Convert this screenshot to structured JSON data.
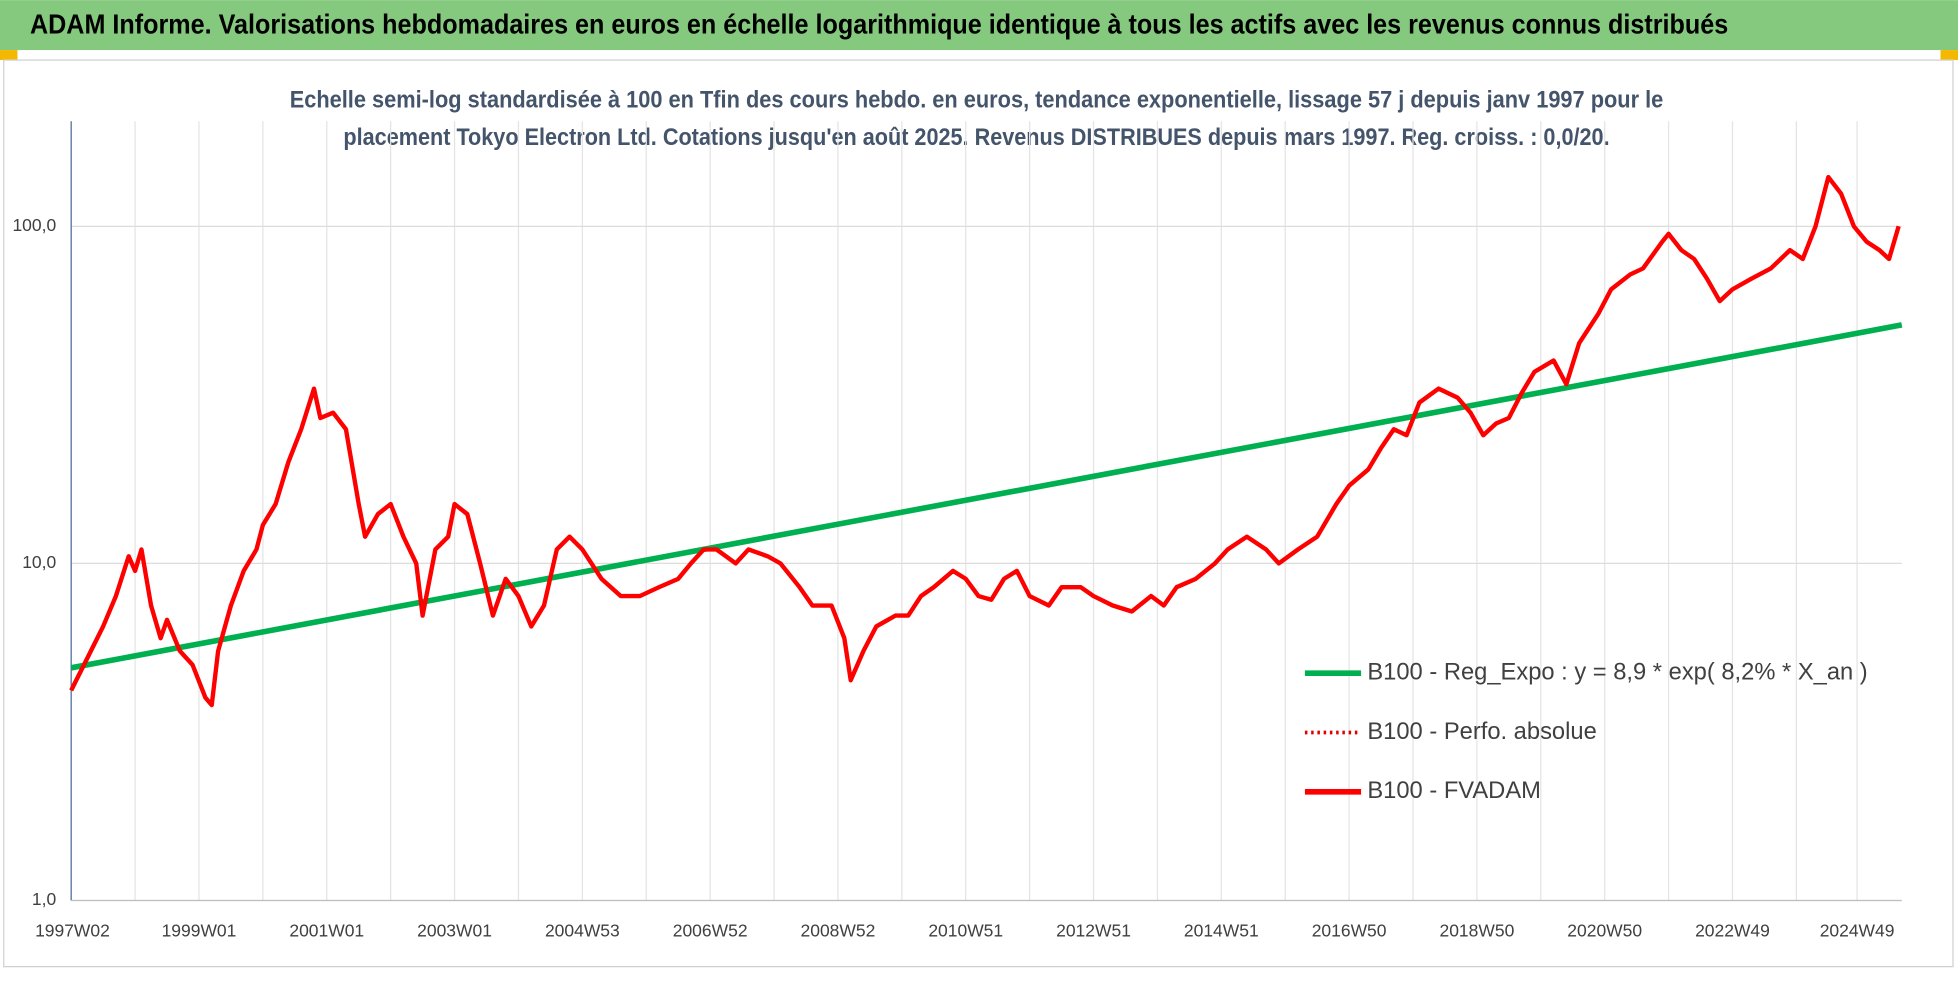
{
  "chart_data": {
    "type": "line",
    "title": "ADAM Informe. Valorisations hebdomadaires en euros en échelle logarithmique identique à tous les actifs avec les revenus connus distribués",
    "subtitle": [
      "Echelle semi-log standardisée à 100 en Tfin des cours hebdo. en euros, tendance exponentielle, lissage 57 j depuis janv 1997 pour le",
      "placement Tokyo Electron Ltd. Cotations jusqu'en août 2025. Revenus DISTRIBUES depuis mars 1997. Reg. croiss. : 0,0/20."
    ],
    "log_y": true,
    "grid": true,
    "legend": "lower right",
    "xlim": [
      1997.0,
      2025.65
    ],
    "xticks": [
      {
        "value": 1997.02,
        "label": "1997W02"
      },
      {
        "value": 1999.0,
        "label": "1999W01"
      },
      {
        "value": 2001.0,
        "label": "2001W01"
      },
      {
        "value": 2003.0,
        "label": "2003W01"
      },
      {
        "value": 2005.0,
        "label": "2004W53"
      },
      {
        "value": 2007.0,
        "label": "2006W52"
      },
      {
        "value": 2009.0,
        "label": "2008W52"
      },
      {
        "value": 2011.0,
        "label": "2010W51"
      },
      {
        "value": 2013.0,
        "label": "2012W51"
      },
      {
        "value": 2015.0,
        "label": "2014W51"
      },
      {
        "value": 2017.0,
        "label": "2016W50"
      },
      {
        "value": 2019.0,
        "label": "2018W50"
      },
      {
        "value": 2021.0,
        "label": "2020W50"
      },
      {
        "value": 2023.0,
        "label": "2022W49"
      },
      {
        "value": 2024.95,
        "label": "2024W49"
      }
    ],
    "xminorticks": [
      1998,
      2000,
      2002,
      2004,
      2006,
      2008,
      2010,
      2012,
      2014,
      2016,
      2018,
      2020,
      2022,
      2024
    ],
    "ylim": [
      1,
      205
    ],
    "yticks": [
      {
        "value": 1,
        "label": "1,0"
      },
      {
        "value": 10,
        "label": "10,0"
      },
      {
        "value": 100,
        "label": "100,0"
      }
    ],
    "series": [
      {
        "name": "B100 - Reg_Expo : y = 8,9 * exp( 8,2% *  X_an )",
        "color": "#00b050",
        "style": "solid",
        "x": [
          1997.0,
          2025.65
        ],
        "values": [
          4.9,
          51
        ]
      },
      {
        "name": "B100 - Perfo. absolue",
        "color": "#e00000",
        "style": "dotted",
        "x": [
          1997.0,
          1997.2,
          1997.5,
          1997.7,
          1997.9,
          1998.0,
          1998.1,
          1998.25,
          1998.4,
          1998.5,
          1998.7,
          1998.9,
          1999.1,
          1999.2,
          1999.3,
          1999.5,
          1999.7,
          1999.9,
          2000.0,
          2000.2,
          2000.4,
          2000.6,
          2000.8,
          2000.9,
          2001.1,
          2001.3,
          2001.5,
          2001.6,
          2001.8,
          2002.0,
          2002.2,
          2002.4,
          2002.5,
          2002.7,
          2002.9,
          2003.0,
          2003.2,
          2003.4,
          2003.6,
          2003.8,
          2004.0,
          2004.2,
          2004.4,
          2004.6,
          2004.8,
          2005.0,
          2005.3,
          2005.6,
          2005.9,
          2006.2,
          2006.5,
          2006.7,
          2006.9,
          2007.1,
          2007.4,
          2007.6,
          2007.9,
          2008.1,
          2008.4,
          2008.6,
          2008.9,
          2009.1,
          2009.2,
          2009.4,
          2009.6,
          2009.9,
          2010.1,
          2010.3,
          2010.5,
          2010.8,
          2011.0,
          2011.2,
          2011.4,
          2011.6,
          2011.8,
          2012.0,
          2012.3,
          2012.5,
          2012.8,
          2013.0,
          2013.3,
          2013.6,
          2013.9,
          2014.1,
          2014.3,
          2014.6,
          2014.9,
          2015.1,
          2015.4,
          2015.7,
          2015.9,
          2016.2,
          2016.5,
          2016.8,
          2017.0,
          2017.3,
          2017.5,
          2017.7,
          2017.9,
          2018.1,
          2018.4,
          2018.7,
          2018.9,
          2019.1,
          2019.3,
          2019.5,
          2019.7,
          2019.9,
          2020.2,
          2020.4,
          2020.6,
          2020.9,
          2021.1,
          2021.4,
          2021.6,
          2021.9,
          2022.0,
          2022.2,
          2022.4,
          2022.6,
          2022.8,
          2023.0,
          2023.3,
          2023.6,
          2023.9,
          2024.1,
          2024.3,
          2024.5,
          2024.7,
          2024.9,
          2025.1,
          2025.3,
          2025.45,
          2025.6
        ],
        "values": [
          4.2,
          5.0,
          6.5,
          8.0,
          10.5,
          9.5,
          11,
          7.5,
          6.0,
          6.8,
          5.5,
          5.0,
          4.0,
          3.8,
          5.5,
          7.5,
          9.5,
          11,
          13,
          15,
          20,
          25,
          33,
          27,
          28,
          25,
          15,
          12,
          14,
          15,
          12,
          10,
          7,
          11,
          12,
          15,
          14,
          10,
          7,
          9,
          8,
          6.5,
          7.5,
          11,
          12,
          11,
          9,
          8,
          8,
          8.5,
          9,
          10,
          11,
          11,
          10,
          11,
          10.5,
          10,
          8.5,
          7.5,
          7.5,
          6,
          4.5,
          5.5,
          6.5,
          7,
          7,
          8,
          8.5,
          9.5,
          9,
          8,
          7.8,
          9,
          9.5,
          8,
          7.5,
          8.5,
          8.5,
          8,
          7.5,
          7.2,
          8,
          7.5,
          8.5,
          9,
          10,
          11,
          12,
          11,
          10,
          11,
          12,
          15,
          17,
          19,
          22,
          25,
          24,
          30,
          33,
          31,
          28,
          24,
          26,
          27,
          32,
          37,
          40,
          34,
          45,
          55,
          65,
          72,
          75,
          90,
          95,
          85,
          80,
          70,
          60,
          65,
          70,
          75,
          85,
          80,
          100,
          140,
          125,
          100,
          90,
          85,
          80,
          100
        ]
      },
      {
        "name": "B100 - FVADAM",
        "color": "#ff0000",
        "style": "solid",
        "x": [
          1997.0,
          1997.2,
          1997.5,
          1997.7,
          1997.9,
          1998.0,
          1998.1,
          1998.25,
          1998.4,
          1998.5,
          1998.7,
          1998.9,
          1999.1,
          1999.2,
          1999.3,
          1999.5,
          1999.7,
          1999.9,
          2000.0,
          2000.2,
          2000.4,
          2000.6,
          2000.8,
          2000.9,
          2001.1,
          2001.3,
          2001.5,
          2001.6,
          2001.8,
          2002.0,
          2002.2,
          2002.4,
          2002.5,
          2002.7,
          2002.9,
          2003.0,
          2003.2,
          2003.4,
          2003.6,
          2003.8,
          2004.0,
          2004.2,
          2004.4,
          2004.6,
          2004.8,
          2005.0,
          2005.3,
          2005.6,
          2005.9,
          2006.2,
          2006.5,
          2006.7,
          2006.9,
          2007.1,
          2007.4,
          2007.6,
          2007.9,
          2008.1,
          2008.4,
          2008.6,
          2008.9,
          2009.1,
          2009.2,
          2009.4,
          2009.6,
          2009.9,
          2010.1,
          2010.3,
          2010.5,
          2010.8,
          2011.0,
          2011.2,
          2011.4,
          2011.6,
          2011.8,
          2012.0,
          2012.3,
          2012.5,
          2012.8,
          2013.0,
          2013.3,
          2013.6,
          2013.9,
          2014.1,
          2014.3,
          2014.6,
          2014.9,
          2015.1,
          2015.4,
          2015.7,
          2015.9,
          2016.2,
          2016.5,
          2016.8,
          2017.0,
          2017.3,
          2017.5,
          2017.7,
          2017.9,
          2018.1,
          2018.4,
          2018.7,
          2018.9,
          2019.1,
          2019.3,
          2019.5,
          2019.7,
          2019.9,
          2020.2,
          2020.4,
          2020.6,
          2020.9,
          2021.1,
          2021.4,
          2021.6,
          2021.9,
          2022.0,
          2022.2,
          2022.4,
          2022.6,
          2022.8,
          2023.0,
          2023.3,
          2023.6,
          2023.9,
          2024.1,
          2024.3,
          2024.5,
          2024.7,
          2024.9,
          2025.1,
          2025.3,
          2025.45,
          2025.6
        ],
        "values": [
          4.2,
          5.0,
          6.5,
          8.0,
          10.5,
          9.5,
          11,
          7.5,
          6.0,
          6.8,
          5.5,
          5.0,
          4.0,
          3.8,
          5.5,
          7.5,
          9.5,
          11,
          13,
          15,
          20,
          25,
          33,
          27,
          28,
          25,
          15,
          12,
          14,
          15,
          12,
          10,
          7,
          11,
          12,
          15,
          14,
          10,
          7,
          9,
          8,
          6.5,
          7.5,
          11,
          12,
          11,
          9,
          8,
          8,
          8.5,
          9,
          10,
          11,
          11,
          10,
          11,
          10.5,
          10,
          8.5,
          7.5,
          7.5,
          6,
          4.5,
          5.5,
          6.5,
          7,
          7,
          8,
          8.5,
          9.5,
          9,
          8,
          7.8,
          9,
          9.5,
          8,
          7.5,
          8.5,
          8.5,
          8,
          7.5,
          7.2,
          8,
          7.5,
          8.5,
          9,
          10,
          11,
          12,
          11,
          10,
          11,
          12,
          15,
          17,
          19,
          22,
          25,
          24,
          30,
          33,
          31,
          28,
          24,
          26,
          27,
          32,
          37,
          40,
          34,
          45,
          55,
          65,
          72,
          75,
          90,
          95,
          85,
          80,
          70,
          60,
          65,
          70,
          75,
          85,
          80,
          100,
          140,
          125,
          100,
          90,
          85,
          80,
          100
        ]
      }
    ]
  }
}
